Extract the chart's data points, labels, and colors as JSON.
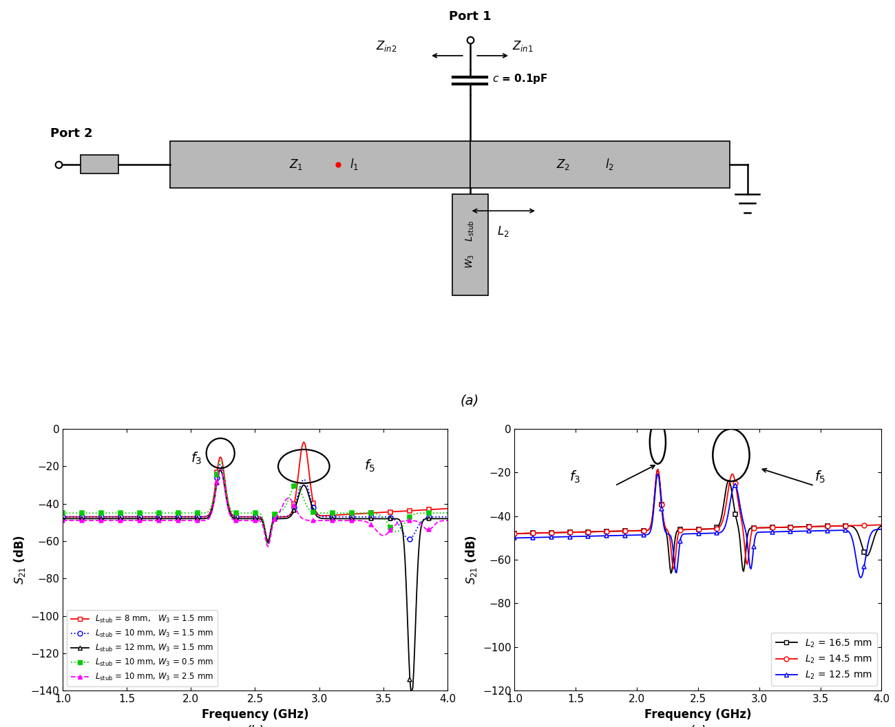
{
  "plot_b": {
    "xlabel": "Frequency (GHz)",
    "ylabel": "$S_{21}$ (dB)",
    "xlim": [
      1.0,
      4.0
    ],
    "ylim": [
      -140,
      0
    ],
    "yticks": [
      0,
      -20,
      -40,
      -60,
      -80,
      -100,
      -120,
      -140
    ],
    "xticks": [
      1.0,
      1.5,
      2.0,
      2.5,
      3.0,
      3.5,
      4.0
    ],
    "series": [
      {
        "label": "$L_\\mathrm{stub}$ = 8 mm,   $W_3$ = 1.5 mm",
        "color": "#ff0000",
        "linestyle": "-",
        "marker": "s",
        "markerfacecolor": "white",
        "markersize": 5
      },
      {
        "label": "$L_\\mathrm{stub}$ = 10 mm, $W_3$ = 1.5 mm",
        "color": "#0000ff",
        "linestyle": ":",
        "marker": "o",
        "markerfacecolor": "white",
        "markersize": 5
      },
      {
        "label": "$L_\\mathrm{stub}$ = 12 mm, $W_3$ = 1.5 mm",
        "color": "#000000",
        "linestyle": "-",
        "marker": "^",
        "markerfacecolor": "white",
        "markersize": 5
      },
      {
        "label": "$L_\\mathrm{stub}$ = 10 mm, $W_3$ = 0.5 mm",
        "color": "#00cc00",
        "linestyle": ":",
        "marker": "s",
        "markerfacecolor": "#00cc00",
        "markersize": 5
      },
      {
        "label": "$L_\\mathrm{stub}$ = 10 mm, $W_3$ = 2.5 mm",
        "color": "#ff00ff",
        "linestyle": "--",
        "marker": "^",
        "markerfacecolor": "#ff00ff",
        "markersize": 5
      }
    ]
  },
  "plot_c": {
    "xlabel": "Frequency (GHz)",
    "ylabel": "$S_{21}$ (dB)",
    "xlim": [
      1.0,
      4.0
    ],
    "ylim": [
      -120,
      0
    ],
    "yticks": [
      0,
      -20,
      -40,
      -60,
      -80,
      -100,
      -120
    ],
    "xticks": [
      1.0,
      1.5,
      2.0,
      2.5,
      3.0,
      3.5,
      4.0
    ],
    "series": [
      {
        "label": "$L_2$ = 16.5 mm",
        "color": "#000000",
        "linestyle": "-",
        "marker": "s",
        "markerfacecolor": "white",
        "markersize": 5
      },
      {
        "label": "$L_2$ = 14.5 mm",
        "color": "#ff0000",
        "linestyle": "-",
        "marker": "o",
        "markerfacecolor": "white",
        "markersize": 5
      },
      {
        "label": "$L_2$ = 12.5 mm",
        "color": "#0000ff",
        "linestyle": "-",
        "marker": "^",
        "markerfacecolor": "white",
        "markersize": 5
      }
    ]
  },
  "circuit": {
    "box_color": "#b8b8b8",
    "line_color": "#000000"
  }
}
